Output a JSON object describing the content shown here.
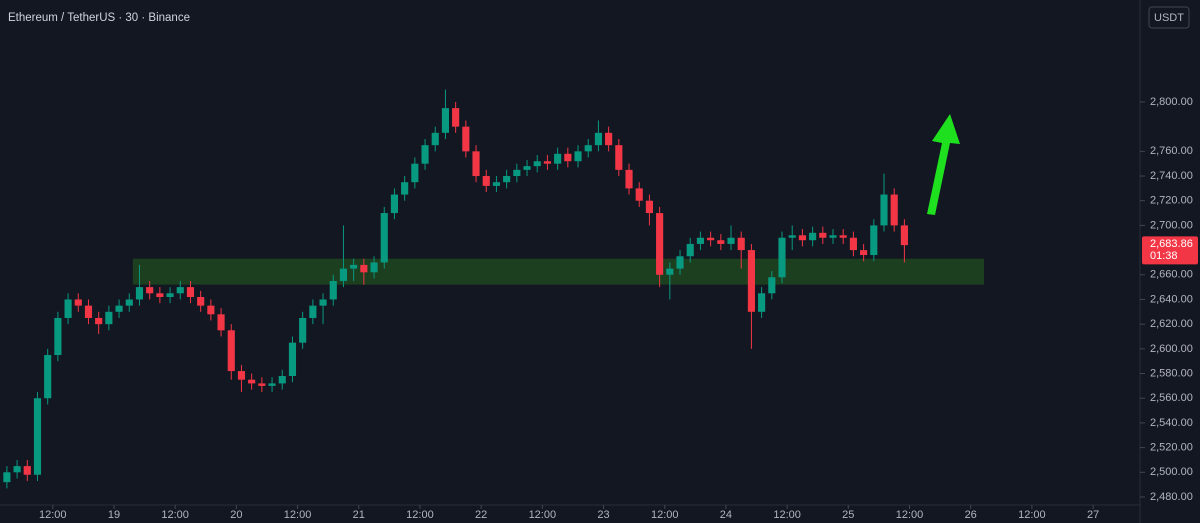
{
  "chart_data": {
    "type": "candlestick",
    "title": "Ethereum / TetherUS · 30 · Binance",
    "currency": "USDT",
    "x": [
      3,
      5,
      7,
      9,
      11,
      13,
      15,
      17,
      19,
      21,
      23,
      25,
      27,
      29,
      31,
      33,
      35,
      37,
      39,
      41,
      43,
      45,
      47,
      49,
      51,
      53,
      55,
      57,
      59,
      61,
      63,
      65,
      67,
      69,
      71,
      73,
      75,
      77,
      79,
      81,
      83,
      85,
      87,
      89,
      91,
      93,
      95,
      97,
      99,
      101,
      103,
      105,
      107,
      109,
      111,
      113,
      115,
      117,
      119,
      121,
      123,
      125,
      127,
      129,
      131,
      133,
      135,
      137,
      139,
      141,
      143,
      145,
      147,
      149,
      151,
      153,
      155,
      157,
      159,
      161,
      163,
      165,
      167,
      169,
      171,
      173,
      175,
      177,
      179
    ],
    "open": [
      2492,
      2500,
      2505,
      2498,
      2560,
      2595,
      2625,
      2640,
      2635,
      2625,
      2620,
      2630,
      2635,
      2640,
      2650,
      2645,
      2642,
      2645,
      2650,
      2642,
      2635,
      2628,
      2615,
      2582,
      2575,
      2572,
      2570,
      2572,
      2578,
      2605,
      2625,
      2635,
      2640,
      2655,
      2665,
      2668,
      2662,
      2670,
      2710,
      2725,
      2735,
      2750,
      2765,
      2775,
      2795,
      2780,
      2760,
      2740,
      2732,
      2735,
      2740,
      2745,
      2748,
      2752,
      2750,
      2758,
      2752,
      2760,
      2765,
      2775,
      2765,
      2745,
      2730,
      2720,
      2710,
      2660,
      2665,
      2675,
      2685,
      2690,
      2688,
      2685,
      2690,
      2680,
      2630,
      2645,
      2658,
      2690,
      2692,
      2688,
      2694,
      2690,
      2692,
      2690,
      2680,
      2676,
      2700,
      2725,
      2700
    ],
    "high": [
      2505,
      2510,
      2510,
      2565,
      2600,
      2630,
      2645,
      2645,
      2640,
      2630,
      2635,
      2640,
      2645,
      2668,
      2655,
      2650,
      2650,
      2655,
      2655,
      2647,
      2640,
      2633,
      2620,
      2587,
      2580,
      2577,
      2577,
      2583,
      2610,
      2630,
      2640,
      2645,
      2660,
      2700,
      2673,
      2673,
      2675,
      2715,
      2730,
      2740,
      2755,
      2770,
      2780,
      2810,
      2800,
      2785,
      2765,
      2745,
      2740,
      2745,
      2750,
      2753,
      2757,
      2757,
      2763,
      2763,
      2765,
      2770,
      2785,
      2780,
      2770,
      2750,
      2735,
      2725,
      2715,
      2670,
      2680,
      2690,
      2695,
      2695,
      2693,
      2700,
      2695,
      2685,
      2650,
      2663,
      2695,
      2700,
      2697,
      2699,
      2699,
      2697,
      2697,
      2695,
      2685,
      2705,
      2742,
      2730,
      2705
    ],
    "low": [
      2487,
      2495,
      2493,
      2493,
      2555,
      2590,
      2620,
      2630,
      2620,
      2612,
      2615,
      2625,
      2630,
      2635,
      2640,
      2637,
      2637,
      2640,
      2637,
      2630,
      2623,
      2610,
      2575,
      2565,
      2567,
      2565,
      2565,
      2567,
      2573,
      2600,
      2620,
      2620,
      2635,
      2650,
      2655,
      2652,
      2657,
      2665,
      2705,
      2720,
      2730,
      2745,
      2760,
      2770,
      2775,
      2755,
      2735,
      2727,
      2727,
      2730,
      2735,
      2740,
      2743,
      2745,
      2745,
      2747,
      2747,
      2755,
      2760,
      2760,
      2740,
      2725,
      2715,
      2700,
      2650,
      2640,
      2660,
      2670,
      2680,
      2683,
      2680,
      2680,
      2665,
      2600,
      2625,
      2640,
      2653,
      2680,
      2683,
      2683,
      2685,
      2685,
      2685,
      2675,
      2671,
      2671,
      2695,
      2695,
      2670
    ],
    "close": [
      2500,
      2505,
      2498,
      2560,
      2595,
      2625,
      2640,
      2635,
      2625,
      2620,
      2630,
      2635,
      2640,
      2650,
      2645,
      2642,
      2645,
      2650,
      2642,
      2635,
      2628,
      2615,
      2582,
      2575,
      2572,
      2570,
      2572,
      2578,
      2605,
      2625,
      2635,
      2640,
      2655,
      2665,
      2668,
      2662,
      2670,
      2710,
      2725,
      2735,
      2750,
      2765,
      2775,
      2795,
      2780,
      2760,
      2740,
      2732,
      2735,
      2740,
      2745,
      2748,
      2752,
      2750,
      2758,
      2752,
      2760,
      2765,
      2775,
      2765,
      2745,
      2730,
      2720,
      2710,
      2660,
      2665,
      2675,
      2685,
      2690,
      2688,
      2685,
      2690,
      2680,
      2630,
      2645,
      2658,
      2690,
      2692,
      2688,
      2694,
      2690,
      2692,
      2690,
      2680,
      2676,
      2700,
      2725,
      2700,
      2684
    ],
    "up_color": "#089981",
    "down_color": "#f23645",
    "xlim": [
      1.65,
      225.2
    ],
    "xticks": [
      {
        "value": 12,
        "label": "12:00"
      },
      {
        "value": 24,
        "label": "19"
      },
      {
        "value": 36,
        "label": "12:00"
      },
      {
        "value": 48,
        "label": "20"
      },
      {
        "value": 60,
        "label": "12:00"
      },
      {
        "value": 72,
        "label": "21"
      },
      {
        "value": 84,
        "label": "12:00"
      },
      {
        "value": 96,
        "label": "22"
      },
      {
        "value": 108,
        "label": "12:00"
      },
      {
        "value": 120,
        "label": "23"
      },
      {
        "value": 132,
        "label": "12:00"
      },
      {
        "value": 144,
        "label": "24"
      },
      {
        "value": 156,
        "label": "12:00"
      },
      {
        "value": 168,
        "label": "25"
      },
      {
        "value": 180,
        "label": "12:00"
      },
      {
        "value": 192,
        "label": "26"
      },
      {
        "value": 204,
        "label": "12:00"
      },
      {
        "value": 216,
        "label": "27"
      }
    ],
    "ylim": [
      2473.5,
      2882.6
    ],
    "yticks": [
      {
        "value": 2480,
        "label": "2,480.00"
      },
      {
        "value": 2500,
        "label": "2,500.00"
      },
      {
        "value": 2520,
        "label": "2,520.00"
      },
      {
        "value": 2540,
        "label": "2,540.00"
      },
      {
        "value": 2560,
        "label": "2,560.00"
      },
      {
        "value": 2580,
        "label": "2,580.00"
      },
      {
        "value": 2600,
        "label": "2,600.00"
      },
      {
        "value": 2620,
        "label": "2,620.00"
      },
      {
        "value": 2640,
        "label": "2,640.00"
      },
      {
        "value": 2660,
        "label": "2,660.00"
      },
      {
        "value": 2700,
        "label": "2,700.00"
      },
      {
        "value": 2720,
        "label": "2,720.00"
      },
      {
        "value": 2740,
        "label": "2,740.00"
      },
      {
        "value": 2760,
        "label": "2,760.00"
      },
      {
        "value": 2800,
        "label": "2,800.00"
      }
    ],
    "zone": {
      "x": [
        27.7,
        194.6
      ],
      "y": [
        2652,
        2673
      ],
      "color": "#1e4620"
    },
    "last_price": {
      "value": 2683.86,
      "label": "2,683.86",
      "countdown": "01:38",
      "color": "#f23645"
    }
  }
}
